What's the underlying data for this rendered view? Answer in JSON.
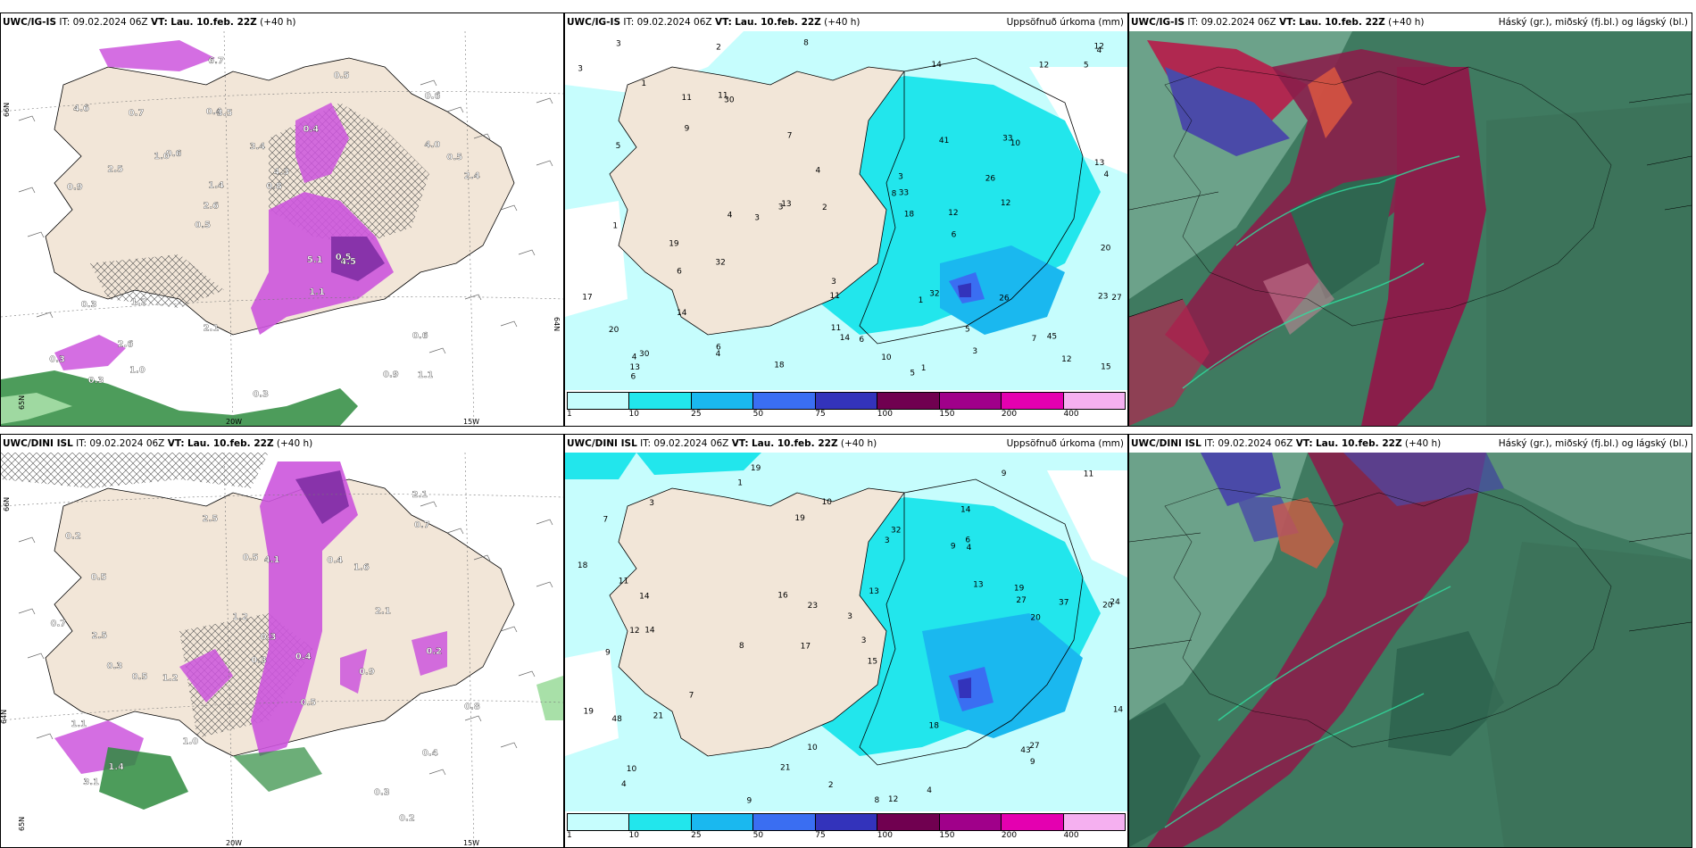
{
  "panels": [
    {
      "id": "top-left",
      "model": "UWC/IG-IS",
      "it": "IT: 09.02.2024 06Z",
      "vt_label": "VT:",
      "vt": "Lau. 10.feb. 22Z",
      "lead": "(+40 h)",
      "right_title": "",
      "axis_labels": {
        "lat66": "66N",
        "lat64": "64N",
        "lat65": "65N",
        "lon20": "20W",
        "lon15": "15W"
      },
      "values": [
        "1.1",
        "0.9",
        "0.6",
        "0.5",
        "0.4",
        "0.3",
        "0.4",
        "3.4",
        "0.3",
        "0.6",
        "0.3",
        "2.6",
        "3.5",
        "4.3",
        "4.5",
        "4.6",
        "6.7",
        "2.4",
        "5.1",
        "4.0",
        "2.6",
        "2.1",
        "1.4",
        "0.7",
        "0.5",
        "1.2",
        "0.9",
        "0.6",
        "0.5",
        "0.3",
        "1.0",
        "2.5",
        "1.1",
        "1.0",
        "0.5",
        "0.8"
      ]
    },
    {
      "id": "top-middle",
      "model": "UWC/IG-IS",
      "it": "IT: 09.02.2024 06Z",
      "vt_label": "VT:",
      "vt": "Lau. 10.feb. 22Z",
      "lead": "(+40 h)",
      "right_title": "Uppsöfnuð úrkoma (mm)",
      "colorbar": {
        "labels": [
          "1",
          "10",
          "25",
          "50",
          "75",
          "100",
          "150",
          "200",
          "400"
        ],
        "colors": [
          "#c6fdfd",
          "#22e6ec",
          "#1ab8ef",
          "#3a6ef2",
          "#3333bb",
          "#700050",
          "#a0008a",
          "#e400b0",
          "#f5b0f0"
        ]
      },
      "values": [
        "18",
        "5",
        "6",
        "5",
        "2",
        "1",
        "4",
        "12",
        "8",
        "7",
        "12",
        "14",
        "13",
        "11",
        "14",
        "8",
        "5",
        "4",
        "3",
        "3",
        "1",
        "4",
        "3",
        "4",
        "10",
        "19",
        "17",
        "6",
        "3",
        "6",
        "2",
        "1",
        "3",
        "5",
        "14",
        "12",
        "23",
        "20",
        "41",
        "45",
        "33",
        "26",
        "27",
        "30",
        "30",
        "32",
        "20",
        "10",
        "11",
        "11",
        "12",
        "13",
        "15",
        "26",
        "32",
        "33",
        "3",
        "4",
        "11",
        "1",
        "7",
        "3",
        "9",
        "12",
        "6",
        "13",
        "18",
        "4",
        "6"
      ]
    },
    {
      "id": "top-right",
      "model": "UWC/IG-IS",
      "it": "IT: 09.02.2024 06Z",
      "vt_label": "VT:",
      "vt": "Lau. 10.feb. 22Z",
      "lead": "(+40 h)",
      "right_title": "Háský (gr.), miðský (fj.bl.) og lágský (bl.)"
    },
    {
      "id": "bottom-left",
      "model": "UWC/DINI ISL",
      "it": "IT: 09.02.2024 06Z",
      "vt_label": "VT:",
      "vt": "Lau. 10.feb. 22Z",
      "lead": "(+40 h)",
      "right_title": "",
      "axis_labels": {
        "lat66": "66N",
        "lat64": "64N",
        "lat65": "65N",
        "lon20": "20W",
        "lon15": "15W"
      },
      "values": [
        "0.2",
        "0.3",
        "0.5",
        "0.2",
        "0.4",
        "0.5",
        "1.4",
        "1.2",
        "1.6",
        "0.5",
        "0.4",
        "0.3",
        "1.0",
        "2.5",
        "0.4",
        "1.1",
        "0.9",
        "0.3",
        "0.7",
        "3.1",
        "2.1",
        "4.1",
        "2.1",
        "0.8",
        "0.2",
        "2.5",
        "0.5",
        "0.3",
        "1.2",
        "0.7"
      ]
    },
    {
      "id": "bottom-middle",
      "model": "UWC/DINI ISL",
      "it": "IT: 09.02.2024 06Z",
      "vt_label": "VT:",
      "vt": "Lau. 10.feb. 22Z",
      "lead": "(+40 h)",
      "right_title": "Uppsöfnuð úrkoma (mm)",
      "colorbar": {
        "labels": [
          "1",
          "10",
          "25",
          "50",
          "75",
          "100",
          "150",
          "200",
          "400"
        ],
        "colors": [
          "#c6fdfd",
          "#22e6ec",
          "#1ab8ef",
          "#3a6ef2",
          "#3333bb",
          "#700050",
          "#a0008a",
          "#e400b0",
          "#f5b0f0"
        ]
      },
      "values": [
        "19",
        "14",
        "20",
        "17",
        "15",
        "14",
        "7",
        "9",
        "9",
        "3",
        "3",
        "4",
        "1",
        "8",
        "8",
        "12",
        "10",
        "9",
        "13",
        "7",
        "14",
        "12",
        "24",
        "37",
        "19",
        "11",
        "23",
        "27",
        "27",
        "48",
        "43",
        "32",
        "21",
        "16",
        "18",
        "14",
        "19",
        "21",
        "11",
        "10",
        "10",
        "9",
        "4",
        "3",
        "2",
        "4",
        "9",
        "6",
        "18",
        "3",
        "19",
        "20",
        "13"
      ]
    },
    {
      "id": "bottom-right",
      "model": "UWC/DINI ISL",
      "it": "IT: 09.02.2024 06Z",
      "vt_label": "VT:",
      "vt": "Lau. 10.feb. 22Z",
      "lead": "(+40 h)",
      "right_title": "Háský (gr.), miðský (fj.bl.) og lágský (bl.)"
    }
  ],
  "colors": {
    "land": "#f2e6d8",
    "sea_white": "#ffffff",
    "precip_light": "#c6fdfd",
    "precip_med": "#22e6ec",
    "violet": "#cc55dd",
    "violet_dark": "#8833aa",
    "snow_green": "#2e8b3e",
    "cloud_high": "#3f7a60",
    "cloud_mid": "#8a1e4a",
    "cloud_low": "#4a4aa8"
  }
}
